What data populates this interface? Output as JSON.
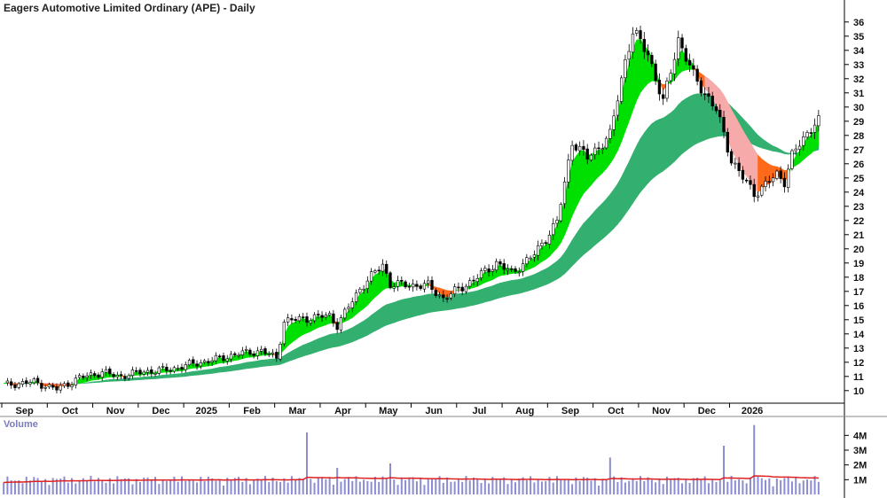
{
  "chart_data": {
    "type": "candlestick",
    "title": "Eagers Automotive Limited Ordinary (APE) - Daily",
    "price_axis": {
      "range": [
        9.3,
        36.8
      ],
      "ticks": [
        10,
        11,
        12,
        13,
        14,
        15,
        16,
        17,
        18,
        19,
        20,
        21,
        22,
        23,
        24,
        25,
        26,
        27,
        28,
        29,
        30,
        31,
        32,
        33,
        34,
        35,
        36
      ]
    },
    "time_axis": {
      "months": [
        "Sep",
        "Oct",
        "Nov",
        "Dec",
        "2025",
        "Feb",
        "Mar",
        "Apr",
        "May",
        "Jun",
        "Jul",
        "Aug",
        "Sep",
        "Oct",
        "Nov",
        "Dec",
        "2026"
      ],
      "month_index": [
        0,
        12,
        24,
        36,
        48,
        60,
        72,
        84,
        96,
        108,
        120,
        132,
        144,
        156,
        168,
        180,
        192
      ],
      "total_bars": 208
    },
    "price_keypoints": [
      [
        0,
        10.4
      ],
      [
        8,
        10.6
      ],
      [
        14,
        10.1
      ],
      [
        20,
        10.9
      ],
      [
        26,
        11.3
      ],
      [
        30,
        11.0
      ],
      [
        36,
        11.3
      ],
      [
        44,
        11.5
      ],
      [
        50,
        11.9
      ],
      [
        56,
        12.2
      ],
      [
        62,
        12.6
      ],
      [
        68,
        12.8
      ],
      [
        72,
        12.3
      ],
      [
        74,
        14.9
      ],
      [
        80,
        15.1
      ],
      [
        86,
        15.3
      ],
      [
        88,
        14.6
      ],
      [
        94,
        17.2
      ],
      [
        100,
        18.9
      ],
      [
        102,
        17.5
      ],
      [
        112,
        17.4
      ],
      [
        116,
        16.5
      ],
      [
        124,
        17.8
      ],
      [
        130,
        19.0
      ],
      [
        134,
        18.3
      ],
      [
        140,
        19.6
      ],
      [
        146,
        21.9
      ],
      [
        148,
        24.6
      ],
      [
        150,
        27.6
      ],
      [
        154,
        26.4
      ],
      [
        160,
        28.0
      ],
      [
        164,
        33.3
      ],
      [
        166,
        35.3
      ],
      [
        170,
        33.8
      ],
      [
        174,
        30.3
      ],
      [
        178,
        34.8
      ],
      [
        182,
        32.2
      ],
      [
        188,
        29.8
      ],
      [
        192,
        26.3
      ],
      [
        196,
        24.6
      ],
      [
        198,
        23.9
      ],
      [
        204,
        25.2
      ],
      [
        206,
        24.8
      ],
      [
        208,
        26.6
      ],
      [
        212,
        28.1
      ],
      [
        214,
        29.0
      ]
    ],
    "volume_axis": {
      "ticks": [
        "1M",
        "2M",
        "3M",
        "4M"
      ],
      "tick_values": [
        1000000,
        2000000,
        3000000,
        4000000
      ],
      "range": [
        0,
        4800000
      ]
    },
    "volume_spikes": [
      [
        80,
        4200000
      ],
      [
        88,
        1800000
      ],
      [
        102,
        2100000
      ],
      [
        160,
        2500000
      ],
      [
        190,
        3300000
      ],
      [
        198,
        4700000
      ]
    ],
    "volume_baseline": 900000,
    "colors": {
      "up_candle": "#ffffff",
      "down_candle": "#000000",
      "short_ribbon_bull": "#00e000",
      "short_ribbon_bear": "#ff6a1a",
      "short_ribbon_fade": "#f7aaaa",
      "long_ribbon_bull": "#33b070",
      "long_ribbon_bear": "#f07878",
      "volume_bar": "#8c8cd0",
      "volume_ma": "#e02020"
    },
    "volume_label": "Volume"
  }
}
